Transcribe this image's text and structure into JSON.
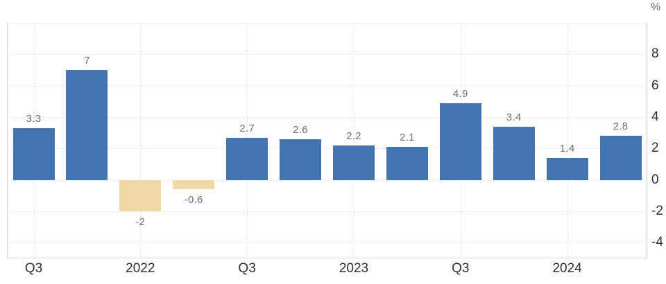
{
  "chart_data": {
    "type": "bar",
    "title": "",
    "unit": "%",
    "values": [
      3.3,
      7,
      -2,
      -0.6,
      2.7,
      2.6,
      2.2,
      2.1,
      4.9,
      3.4,
      1.4,
      2.8
    ],
    "value_labels": [
      "3.3",
      "7",
      "-2",
      "-0.6",
      "2.7",
      "2.6",
      "2.2",
      "2.1",
      "4.9",
      "3.4",
      "1.4",
      "2.8"
    ],
    "x_ticks": [
      {
        "bar_index": 0,
        "label": "Q3"
      },
      {
        "bar_index": 2,
        "label": "2022"
      },
      {
        "bar_index": 4,
        "label": "Q3"
      },
      {
        "bar_index": 6,
        "label": "2023"
      },
      {
        "bar_index": 8,
        "label": "Q3"
      },
      {
        "bar_index": 10,
        "label": "2024"
      }
    ],
    "y_ticks": [
      8,
      6,
      4,
      2,
      0,
      -2,
      -4
    ],
    "y_gridlines": [
      10,
      8,
      6,
      4,
      2,
      0,
      -2,
      -4
    ],
    "ylim": [
      -5,
      10
    ],
    "grid": true,
    "legend_position": "none",
    "colors": {
      "positive": "#4473b2",
      "negative": "#f2d8a4",
      "grid": "#dedede",
      "value_label": "#6f6f6f",
      "tick_label": "#2f2f2f",
      "unit_label": "#666666",
      "background": "#ffffff"
    }
  }
}
